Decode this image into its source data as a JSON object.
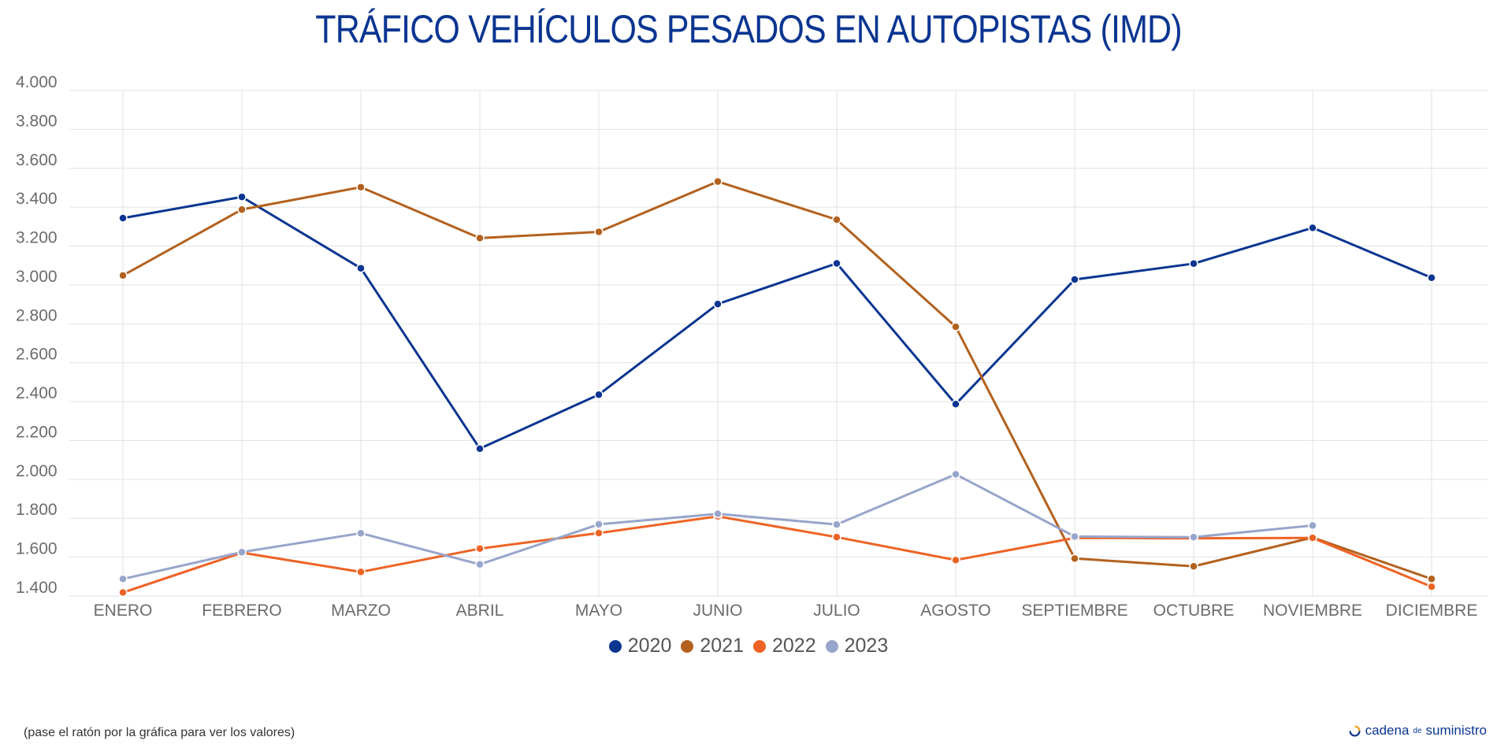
{
  "title": "TRÁFICO VEHÍCULOS PESADOS EN AUTOPISTAS (IMD)",
  "footer_note": "(pase el ratón por la gráfica para ver los valores)",
  "brand": {
    "part1": "cadena",
    "part2": "de",
    "part3": "suministro"
  },
  "chart_data": {
    "type": "line",
    "title": "TRÁFICO VEHÍCULOS PESADOS EN AUTOPISTAS (IMD)",
    "xlabel": "",
    "ylabel": "",
    "categories": [
      "ENERO",
      "FEBRERO",
      "MARZO",
      "ABRIL",
      "MAYO",
      "JUNIO",
      "JULIO",
      "AGOSTO",
      "SEPTIEMBRE",
      "OCTUBRE",
      "NOVIEMBRE",
      "DICIEMBRE"
    ],
    "ylim": [
      1400,
      4000
    ],
    "yticks": [
      1400,
      1600,
      1800,
      2000,
      2200,
      2400,
      2600,
      2800,
      3000,
      3200,
      3400,
      3600,
      3800,
      4000
    ],
    "ytick_labels": [
      "1.400",
      "1.600",
      "1.800",
      "2.000",
      "2.200",
      "2.400",
      "2.600",
      "2.800",
      "3.000",
      "3.200",
      "3.400",
      "3.600",
      "3.800",
      "4.000"
    ],
    "grid": true,
    "legend_position": "bottom",
    "series": [
      {
        "name": "2020",
        "color": "#0a3591",
        "values": [
          3344,
          3453,
          3086,
          2158,
          2436,
          2902,
          3111,
          2387,
          3028,
          3110,
          3294,
          3037
        ]
      },
      {
        "name": "2021",
        "color": "#b3611e",
        "values": [
          3049,
          3388,
          3503,
          3241,
          3273,
          3532,
          3336,
          2785,
          1593,
          1553,
          1701,
          1488
        ]
      },
      {
        "name": "2022",
        "color": "#ee6325",
        "values": [
          1418,
          1623,
          1524,
          1644,
          1724,
          1810,
          1703,
          1585,
          1699,
          1697,
          1699,
          1448
        ]
      },
      {
        "name": "2023",
        "color": "#98a5cb",
        "values": [
          1488,
          1626,
          1723,
          1563,
          1769,
          1823,
          1768,
          2026,
          1706,
          1703,
          1763,
          null
        ]
      }
    ]
  }
}
